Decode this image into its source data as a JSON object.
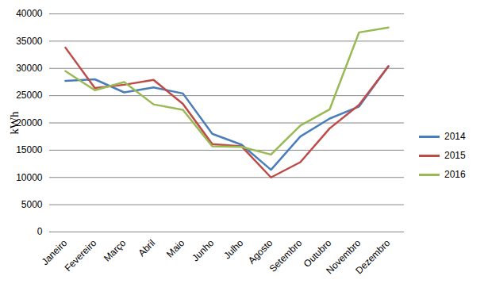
{
  "chart_data": {
    "type": "line",
    "y_label": "kWh",
    "categories": [
      "Janeiro",
      "Fevereiro",
      "Março",
      "Abril",
      "Maio",
      "Junho",
      "Julho",
      "Agosto",
      "Setembro",
      "Outubro",
      "Novembro",
      "Dezembro"
    ],
    "series": [
      {
        "name": "2014",
        "color": "#4a7ebb",
        "values": [
          27700,
          28000,
          25600,
          26500,
          25400,
          18000,
          16000,
          11400,
          17500,
          20800,
          23000,
          30400
        ]
      },
      {
        "name": "2015",
        "color": "#be4b48",
        "values": [
          33800,
          26400,
          27000,
          27900,
          23500,
          16100,
          15700,
          10000,
          12800,
          19000,
          23300,
          30400
        ]
      },
      {
        "name": "2016",
        "color": "#98b954",
        "values": [
          29500,
          26000,
          27500,
          23400,
          22400,
          15700,
          15600,
          14200,
          19500,
          22500,
          36600,
          37500
        ]
      }
    ],
    "ylim": [
      0,
      40000
    ],
    "yticks": [
      0,
      5000,
      10000,
      15000,
      20000,
      25000,
      30000,
      35000,
      40000
    ],
    "grid": true,
    "legend": "right"
  }
}
